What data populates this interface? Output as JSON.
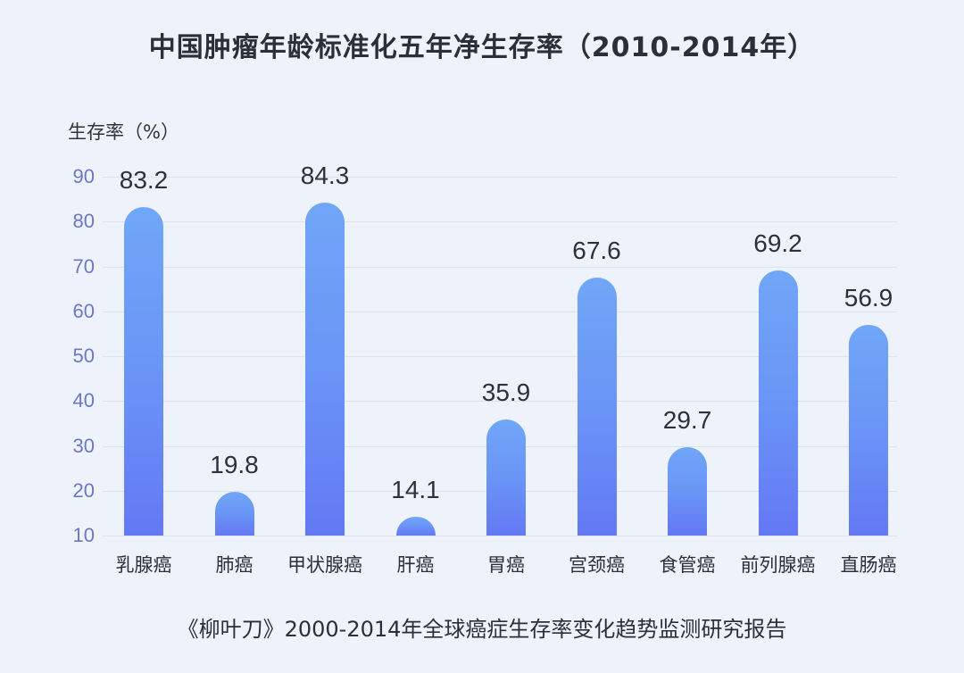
{
  "chart": {
    "title": "中国肿瘤年龄标准化五年净生存率（2010-2014年）",
    "ylabel": "生存率（%）",
    "source": "《柳叶刀》2000-2014年全球癌症生存率变化趋势监测研究报告"
  },
  "chart_data": {
    "type": "bar",
    "title": "中国肿瘤年龄标准化五年净生存率（2010-2014年）",
    "xlabel": "",
    "ylabel": "生存率（%）",
    "categories": [
      "乳腺癌",
      "肺癌",
      "甲状腺癌",
      "肝癌",
      "胃癌",
      "宫颈癌",
      "食管癌",
      "前列腺癌",
      "直肠癌"
    ],
    "values": [
      83.2,
      19.8,
      84.3,
      14.1,
      35.9,
      67.6,
      29.7,
      69.2,
      56.9
    ],
    "value_labels": [
      "83.2",
      "19.8",
      "84.3",
      "14.1",
      "35.9",
      "67.6",
      "29.7",
      "69.2",
      "56.9"
    ],
    "yticks": [
      "90",
      "80",
      "70",
      "60",
      "50",
      "40",
      "30",
      "20",
      "10"
    ],
    "ylim": [
      10,
      90
    ],
    "grid": true,
    "legend": null,
    "colors": {
      "bar_top": "#70a6f7",
      "bar_bottom": "#6478f4",
      "tick_text": "#6a78c9",
      "background": "#eef2fb"
    },
    "source": "《柳叶刀》2000-2014年全球癌症生存率变化趋势监测研究报告"
  }
}
